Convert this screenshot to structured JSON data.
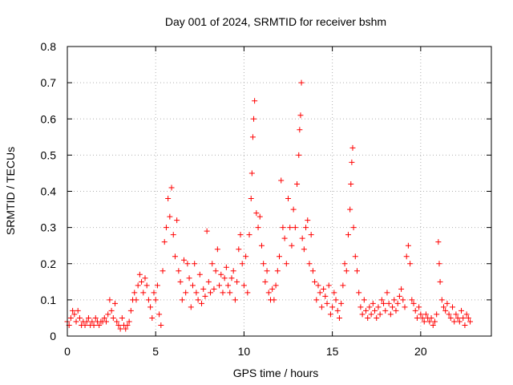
{
  "chart_data": {
    "type": "scatter",
    "title": "Day 001 of 2024, SRMTID for receiver bshm",
    "xlabel": "GPS time / hours",
    "ylabel": "SRMTID / TECUs",
    "xlim": [
      0,
      24
    ],
    "ylim": [
      0,
      0.8
    ],
    "xticks": [
      "0",
      "5",
      "10",
      "15",
      "20"
    ],
    "yticks": [
      "0",
      "0.1",
      "0.2",
      "0.3",
      "0.4",
      "0.5",
      "0.6",
      "0.7",
      "0.8"
    ],
    "grid": true,
    "marker": "+",
    "color": "#ff0000",
    "series": [
      {
        "name": "SRMTID",
        "points": [
          [
            0.0,
            0.04
          ],
          [
            0.1,
            0.03
          ],
          [
            0.2,
            0.05
          ],
          [
            0.3,
            0.07
          ],
          [
            0.4,
            0.06
          ],
          [
            0.5,
            0.04
          ],
          [
            0.6,
            0.07
          ],
          [
            0.7,
            0.05
          ],
          [
            0.8,
            0.03
          ],
          [
            0.9,
            0.04
          ],
          [
            1.0,
            0.03
          ],
          [
            1.1,
            0.04
          ],
          [
            1.2,
            0.05
          ],
          [
            1.3,
            0.03
          ],
          [
            1.4,
            0.04
          ],
          [
            1.5,
            0.03
          ],
          [
            1.6,
            0.05
          ],
          [
            1.7,
            0.04
          ],
          [
            1.8,
            0.03
          ],
          [
            1.9,
            0.04
          ],
          [
            2.0,
            0.04
          ],
          [
            2.1,
            0.05
          ],
          [
            2.2,
            0.04
          ],
          [
            2.3,
            0.06
          ],
          [
            2.4,
            0.1
          ],
          [
            2.5,
            0.07
          ],
          [
            2.6,
            0.05
          ],
          [
            2.7,
            0.09
          ],
          [
            2.8,
            0.04
          ],
          [
            2.9,
            0.03
          ],
          [
            3.0,
            0.02
          ],
          [
            3.1,
            0.05
          ],
          [
            3.2,
            0.03
          ],
          [
            3.3,
            0.02
          ],
          [
            3.4,
            0.03
          ],
          [
            3.5,
            0.04
          ],
          [
            3.6,
            0.07
          ],
          [
            3.7,
            0.1
          ],
          [
            3.8,
            0.12
          ],
          [
            3.9,
            0.1
          ],
          [
            4.0,
            0.14
          ],
          [
            4.1,
            0.17
          ],
          [
            4.2,
            0.15
          ],
          [
            4.3,
            0.12
          ],
          [
            4.4,
            0.16
          ],
          [
            4.5,
            0.14
          ],
          [
            4.6,
            0.1
          ],
          [
            4.7,
            0.08
          ],
          [
            4.8,
            0.05
          ],
          [
            4.9,
            0.12
          ],
          [
            5.0,
            0.1
          ],
          [
            5.1,
            0.14
          ],
          [
            5.2,
            0.06
          ],
          [
            5.3,
            0.03
          ],
          [
            5.4,
            0.18
          ],
          [
            5.5,
            0.26
          ],
          [
            5.6,
            0.3
          ],
          [
            5.7,
            0.38
          ],
          [
            5.8,
            0.33
          ],
          [
            5.9,
            0.41
          ],
          [
            6.0,
            0.28
          ],
          [
            6.1,
            0.22
          ],
          [
            6.2,
            0.32
          ],
          [
            6.3,
            0.18
          ],
          [
            6.4,
            0.15
          ],
          [
            6.5,
            0.1
          ],
          [
            6.6,
            0.21
          ],
          [
            6.7,
            0.12
          ],
          [
            6.8,
            0.2
          ],
          [
            6.9,
            0.16
          ],
          [
            7.0,
            0.08
          ],
          [
            7.1,
            0.14
          ],
          [
            7.2,
            0.2
          ],
          [
            7.3,
            0.12
          ],
          [
            7.4,
            0.1
          ],
          [
            7.5,
            0.17
          ],
          [
            7.6,
            0.09
          ],
          [
            7.7,
            0.13
          ],
          [
            7.8,
            0.11
          ],
          [
            7.9,
            0.29
          ],
          [
            8.0,
            0.15
          ],
          [
            8.1,
            0.12
          ],
          [
            8.2,
            0.2
          ],
          [
            8.3,
            0.13
          ],
          [
            8.4,
            0.18
          ],
          [
            8.5,
            0.24
          ],
          [
            8.6,
            0.14
          ],
          [
            8.7,
            0.17
          ],
          [
            8.8,
            0.12
          ],
          [
            8.9,
            0.16
          ],
          [
            9.0,
            0.19
          ],
          [
            9.1,
            0.14
          ],
          [
            9.2,
            0.12
          ],
          [
            9.3,
            0.16
          ],
          [
            9.4,
            0.18
          ],
          [
            9.5,
            0.1
          ],
          [
            9.6,
            0.15
          ],
          [
            9.7,
            0.24
          ],
          [
            9.8,
            0.28
          ],
          [
            9.9,
            0.2
          ],
          [
            10.0,
            0.14
          ],
          [
            10.1,
            0.22
          ],
          [
            10.2,
            0.12
          ],
          [
            10.3,
            0.28
          ],
          [
            10.4,
            0.38
          ],
          [
            10.45,
            0.45
          ],
          [
            10.5,
            0.55
          ],
          [
            10.55,
            0.6
          ],
          [
            10.6,
            0.65
          ],
          [
            10.7,
            0.34
          ],
          [
            10.8,
            0.3
          ],
          [
            10.9,
            0.33
          ],
          [
            11.0,
            0.25
          ],
          [
            11.1,
            0.2
          ],
          [
            11.2,
            0.15
          ],
          [
            11.3,
            0.18
          ],
          [
            11.4,
            0.12
          ],
          [
            11.5,
            0.1
          ],
          [
            11.6,
            0.13
          ],
          [
            11.7,
            0.1
          ],
          [
            11.8,
            0.14
          ],
          [
            11.9,
            0.18
          ],
          [
            12.0,
            0.22
          ],
          [
            12.1,
            0.43
          ],
          [
            12.2,
            0.3
          ],
          [
            12.3,
            0.27
          ],
          [
            12.4,
            0.2
          ],
          [
            12.5,
            0.38
          ],
          [
            12.6,
            0.3
          ],
          [
            12.7,
            0.25
          ],
          [
            12.8,
            0.35
          ],
          [
            12.9,
            0.3
          ],
          [
            13.0,
            0.42
          ],
          [
            13.1,
            0.5
          ],
          [
            13.15,
            0.57
          ],
          [
            13.2,
            0.61
          ],
          [
            13.25,
            0.7
          ],
          [
            13.3,
            0.27
          ],
          [
            13.4,
            0.24
          ],
          [
            13.5,
            0.3
          ],
          [
            13.6,
            0.32
          ],
          [
            13.7,
            0.2
          ],
          [
            13.8,
            0.28
          ],
          [
            13.9,
            0.18
          ],
          [
            14.0,
            0.15
          ],
          [
            14.1,
            0.1
          ],
          [
            14.2,
            0.14
          ],
          [
            14.3,
            0.12
          ],
          [
            14.4,
            0.08
          ],
          [
            14.5,
            0.13
          ],
          [
            14.6,
            0.11
          ],
          [
            14.7,
            0.09
          ],
          [
            14.8,
            0.14
          ],
          [
            14.9,
            0.06
          ],
          [
            15.0,
            0.08
          ],
          [
            15.1,
            0.12
          ],
          [
            15.2,
            0.1
          ],
          [
            15.3,
            0.07
          ],
          [
            15.4,
            0.05
          ],
          [
            15.5,
            0.09
          ],
          [
            15.6,
            0.14
          ],
          [
            15.7,
            0.2
          ],
          [
            15.8,
            0.18
          ],
          [
            15.9,
            0.28
          ],
          [
            16.0,
            0.35
          ],
          [
            16.05,
            0.42
          ],
          [
            16.1,
            0.48
          ],
          [
            16.15,
            0.52
          ],
          [
            16.2,
            0.3
          ],
          [
            16.3,
            0.22
          ],
          [
            16.4,
            0.18
          ],
          [
            16.5,
            0.12
          ],
          [
            16.6,
            0.08
          ],
          [
            16.7,
            0.06
          ],
          [
            16.8,
            0.1
          ],
          [
            16.9,
            0.07
          ],
          [
            17.0,
            0.05
          ],
          [
            17.1,
            0.08
          ],
          [
            17.2,
            0.06
          ],
          [
            17.3,
            0.09
          ],
          [
            17.4,
            0.07
          ],
          [
            17.5,
            0.05
          ],
          [
            17.6,
            0.08
          ],
          [
            17.7,
            0.06
          ],
          [
            17.8,
            0.1
          ],
          [
            17.9,
            0.09
          ],
          [
            18.0,
            0.07
          ],
          [
            18.1,
            0.12
          ],
          [
            18.2,
            0.09
          ],
          [
            18.3,
            0.06
          ],
          [
            18.4,
            0.08
          ],
          [
            18.5,
            0.1
          ],
          [
            18.6,
            0.07
          ],
          [
            18.7,
            0.09
          ],
          [
            18.8,
            0.11
          ],
          [
            18.9,
            0.13
          ],
          [
            19.0,
            0.1
          ],
          [
            19.1,
            0.08
          ],
          [
            19.2,
            0.22
          ],
          [
            19.3,
            0.25
          ],
          [
            19.4,
            0.2
          ],
          [
            19.5,
            0.1
          ],
          [
            19.6,
            0.09
          ],
          [
            19.7,
            0.07
          ],
          [
            19.8,
            0.05
          ],
          [
            19.9,
            0.08
          ],
          [
            20.0,
            0.06
          ],
          [
            20.1,
            0.05
          ],
          [
            20.2,
            0.04
          ],
          [
            20.3,
            0.06
          ],
          [
            20.4,
            0.05
          ],
          [
            20.5,
            0.04
          ],
          [
            20.6,
            0.05
          ],
          [
            20.7,
            0.03
          ],
          [
            20.8,
            0.04
          ],
          [
            20.9,
            0.06
          ],
          [
            21.0,
            0.26
          ],
          [
            21.05,
            0.2
          ],
          [
            21.1,
            0.15
          ],
          [
            21.2,
            0.1
          ],
          [
            21.3,
            0.08
          ],
          [
            21.4,
            0.07
          ],
          [
            21.5,
            0.09
          ],
          [
            21.6,
            0.06
          ],
          [
            21.7,
            0.05
          ],
          [
            21.8,
            0.08
          ],
          [
            21.9,
            0.04
          ],
          [
            22.0,
            0.06
          ],
          [
            22.1,
            0.05
          ],
          [
            22.2,
            0.04
          ],
          [
            22.3,
            0.07
          ],
          [
            22.4,
            0.05
          ],
          [
            22.5,
            0.03
          ],
          [
            22.6,
            0.06
          ],
          [
            22.7,
            0.05
          ],
          [
            22.8,
            0.04
          ]
        ]
      }
    ]
  }
}
